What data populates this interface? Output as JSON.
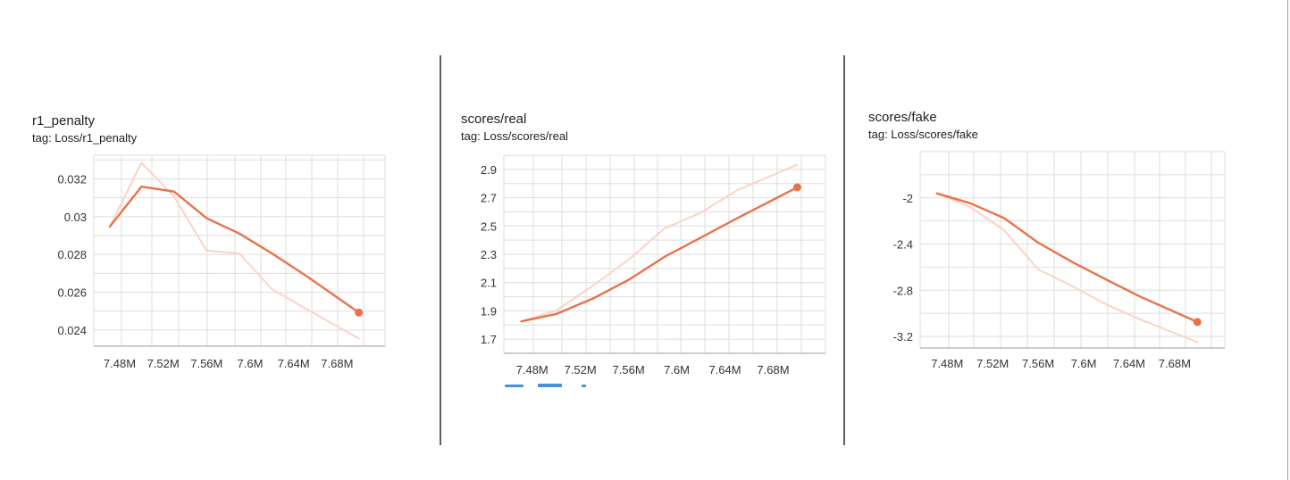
{
  "colors": {
    "line": "#e8734b",
    "raw_line": "#fbd3c6",
    "grid": "#dddddd",
    "axis": "#9e9e9e"
  },
  "charts": [
    {
      "title": "r1_penalty",
      "tag": "tag: Loss/r1_penalty"
    },
    {
      "title": "scores/real",
      "tag": "tag: Loss/scores/real"
    },
    {
      "title": "scores/fake",
      "tag": "tag: Loss/scores/fake"
    }
  ],
  "chart_data": [
    {
      "type": "line",
      "title": "r1_penalty",
      "xlabel": "",
      "ylabel": "",
      "xlim": [
        7.4562,
        7.7241
      ],
      "ylim": [
        0.02315,
        0.03325
      ],
      "x_ticks": [
        7.48,
        7.52,
        7.56,
        7.6,
        7.64,
        7.68
      ],
      "x_tick_labels": [
        "7.48M",
        "7.52M",
        "7.56M",
        "7.6M",
        "7.64M",
        "7.68M"
      ],
      "y_ticks": [
        0.024,
        0.026,
        0.028,
        0.03,
        0.032
      ],
      "y_tick_labels": [
        "0.024",
        "0.026",
        "0.028",
        "0.03",
        "0.032"
      ],
      "grid": true,
      "series": [
        {
          "role": "smoothed",
          "x": [
            7.471,
            7.5,
            7.53,
            7.56,
            7.59,
            7.62,
            7.65,
            7.7
          ],
          "y": [
            0.02948,
            0.03159,
            0.03133,
            0.02992,
            0.02911,
            0.02806,
            0.02693,
            0.02493
          ]
        },
        {
          "role": "raw",
          "x": [
            7.471,
            7.5,
            7.53,
            7.56,
            7.59,
            7.62,
            7.65,
            7.7
          ],
          "y": [
            0.02948,
            0.03285,
            0.03107,
            0.0282,
            0.02806,
            0.02617,
            0.02518,
            0.02355
          ]
        }
      ]
    },
    {
      "type": "line",
      "title": "scores/real",
      "xlabel": "",
      "ylabel": "",
      "xlim": [
        7.4565,
        7.7234
      ],
      "ylim": [
        1.6,
        3.0
      ],
      "x_ticks": [
        7.48,
        7.52,
        7.56,
        7.6,
        7.64,
        7.68
      ],
      "x_tick_labels": [
        "7.48M",
        "7.52M",
        "7.56M",
        "7.6M",
        "7.64M",
        "7.68M"
      ],
      "y_ticks": [
        1.7,
        1.9,
        2.1,
        2.3,
        2.5,
        2.7,
        2.9
      ],
      "y_tick_labels": [
        "1.7",
        "1.9",
        "2.1",
        "2.3",
        "2.5",
        "2.7",
        "2.9"
      ],
      "grid": true,
      "series": [
        {
          "role": "smoothed",
          "x": [
            7.471,
            7.5,
            7.53,
            7.56,
            7.59,
            7.62,
            7.65,
            7.7
          ],
          "y": [
            1.826,
            1.878,
            1.985,
            2.119,
            2.283,
            2.418,
            2.554,
            2.773
          ]
        },
        {
          "role": "raw",
          "x": [
            7.471,
            7.5,
            7.53,
            7.56,
            7.59,
            7.62,
            7.65,
            7.7
          ],
          "y": [
            1.826,
            1.903,
            2.076,
            2.261,
            2.484,
            2.594,
            2.752,
            2.934
          ]
        }
      ]
    },
    {
      "type": "line",
      "title": "scores/fake",
      "xlabel": "",
      "ylabel": "",
      "xlim": [
        7.4562,
        7.7241
      ],
      "ylim": [
        -3.3,
        -1.6
      ],
      "x_ticks": [
        7.48,
        7.52,
        7.56,
        7.6,
        7.64,
        7.68
      ],
      "x_tick_labels": [
        "7.48M",
        "7.52M",
        "7.56M",
        "7.6M",
        "7.64M",
        "7.68M"
      ],
      "y_ticks": [
        -3.2,
        -2.8,
        -2.4,
        -2.0
      ],
      "y_tick_labels": [
        "-3.2",
        "-2.8",
        "-2.4",
        "-2"
      ],
      "grid": true,
      "series": [
        {
          "role": "smoothed",
          "x": [
            7.471,
            7.5,
            7.53,
            7.56,
            7.59,
            7.62,
            7.65,
            7.7
          ],
          "y": [
            -1.962,
            -2.046,
            -2.175,
            -2.388,
            -2.556,
            -2.708,
            -2.857,
            -3.075
          ]
        },
        {
          "role": "raw",
          "x": [
            7.471,
            7.5,
            7.53,
            7.56,
            7.59,
            7.62,
            7.65,
            7.7
          ],
          "y": [
            -1.962,
            -2.078,
            -2.279,
            -2.62,
            -2.764,
            -2.924,
            -3.054,
            -3.25
          ]
        }
      ]
    }
  ]
}
